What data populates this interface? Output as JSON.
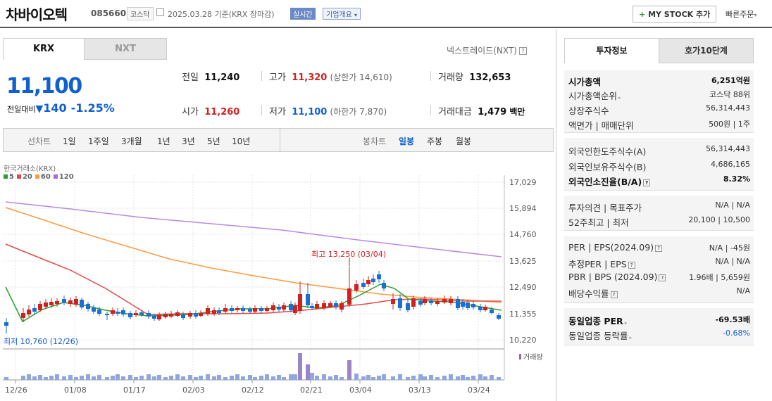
{
  "header": {
    "name": "차바이오텍",
    "code": "085660",
    "market": "코스닥",
    "date": "2025.03.28",
    "basis": "기준(KRX 장마감)",
    "realtime": "실시간",
    "corp": "기업개요",
    "mystock": "MY STOCK 추가",
    "quick": "빠른주문"
  },
  "tabs": {
    "krx": "KRX",
    "nxt": "NXT",
    "nextrade": "넥스트레이드(NXT)"
  },
  "quote": {
    "price": "11,100",
    "change_label": "전일대비",
    "change": "140",
    "change_pct": "-1.25%",
    "prev_label": "전일",
    "prev": "11,240",
    "high_label": "고가",
    "high": "11,320",
    "upper": "(상한가 14,610)",
    "vol_label": "거래량",
    "vol": "132,653",
    "open_label": "시가",
    "open": "11,260",
    "low_label": "저가",
    "low": "11,100",
    "lower": "(하한가 7,870)",
    "amt_label": "거래대금",
    "amt": "1,479",
    "amt_unit": "백만"
  },
  "period": {
    "label": "선차트",
    "items": [
      "1일",
      "1주일",
      "3개월",
      "1년",
      "3년",
      "5년",
      "10년"
    ],
    "candle_label": "봉차트",
    "candle_items": [
      "일봉",
      "주봉",
      "월봉"
    ]
  },
  "chart": {
    "source": "한국거래소(KRX)",
    "legend": [
      "5",
      "20",
      "60",
      "120"
    ],
    "legend_colors": [
      "#2ca02c",
      "#e04a4a",
      "#ff9a3c",
      "#a86ad8"
    ],
    "y_ticks": [
      "17,029",
      "15,894",
      "14,760",
      "13,625",
      "12,490",
      "11,355",
      "10,220"
    ],
    "x_ticks": [
      "12/26",
      "01/08",
      "01/17",
      "02/03",
      "02/12",
      "02/21",
      "03/04",
      "03/13",
      "03/24"
    ],
    "high_note": "최고 13,250 (03/04)",
    "low_note": "최저 10,760 (12/26)",
    "vol_label": "거래량"
  },
  "chart_data": {
    "type": "candlestick",
    "series": [
      {
        "name": "5",
        "color": "#2ca02c"
      },
      {
        "name": "20",
        "color": "#e04a4a"
      },
      {
        "name": "60",
        "color": "#ff9a3c"
      },
      {
        "name": "120",
        "color": "#a86ad8"
      }
    ],
    "max": {
      "value": 13250,
      "date": "03/04"
    },
    "min": {
      "value": 10760,
      "date": "12/26"
    },
    "ylim": [
      10220,
      17029
    ]
  },
  "info": {
    "tab_a": "투자정보",
    "tab_b": "호가10단계",
    "g1": [
      [
        "시가총액",
        "6,251억원"
      ],
      [
        "시가총액순위",
        "코스닥 88위"
      ],
      [
        "상장주식수",
        "56,314,443"
      ],
      [
        "액면가 | 매매단위",
        "500원 | 1주"
      ]
    ],
    "g2": [
      [
        "외국인한도주식수(A)",
        "56,314,443"
      ],
      [
        "외국인보유주식수(B)",
        "4,686,165"
      ],
      [
        "외국인소진율(B/A)",
        "8.32%"
      ]
    ],
    "g3": [
      [
        "투자의견 | 목표주가",
        "N/A | N/A"
      ],
      [
        "52주최고 | 최저",
        "20,100 | 10,500"
      ]
    ],
    "g4": [
      [
        "PER | EPS(2024.09)",
        "N/A | -45원"
      ],
      [
        "추정PER | EPS",
        "N/A | N/A"
      ],
      [
        "PBR | BPS (2024.09)",
        "1.96배 | 5,659원"
      ],
      [
        "배당수익률",
        "N/A"
      ]
    ],
    "g5": [
      [
        "동일업종 PER",
        "-69.53배"
      ],
      [
        "동일업종 등락률",
        "-0.68%"
      ]
    ]
  }
}
